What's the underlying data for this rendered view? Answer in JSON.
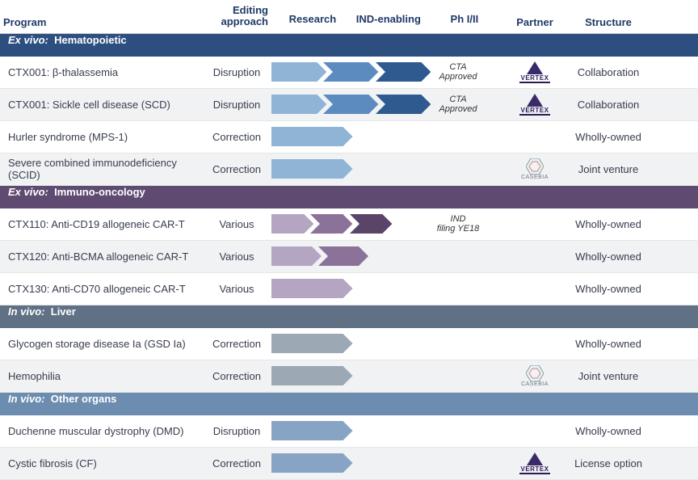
{
  "colors": {
    "text_header": "#1f3a68",
    "section_hema": "#2d4f80",
    "section_immuno": "#5f4b72",
    "section_liver": "#607185",
    "section_other": "#6d8db0",
    "chev_blue_light": "#8fb4d6",
    "chev_blue_med": "#5c8cbf",
    "chev_blue_dark": "#2e5a8f",
    "chev_purple_light": "#b4a6c2",
    "chev_purple_med": "#8b7299",
    "chev_purple_dark": "#5a4468",
    "chev_grey": "#9da8b5",
    "chev_steel": "#88a4c4"
  },
  "headers": {
    "program": "Program",
    "editing_line1": "Editing",
    "editing_line2": "approach",
    "research": "Research",
    "ind": "IND-enabling",
    "ph": "Ph I/II",
    "partner": "Partner",
    "structure": "Structure"
  },
  "sections": [
    {
      "prefix": "Ex vivo:",
      "title": "Hematopoietic",
      "bg": "section_hema",
      "rows": [
        {
          "program": "CTX001: β-thalassemia",
          "editing": "Disruption",
          "chevrons": [
            "chev_blue_light",
            "chev_blue_med",
            "chev_blue_dark"
          ],
          "chev_span": 66.6,
          "status": "CTA Approved",
          "partner": "vertex",
          "structure": "Collaboration",
          "alt": false
        },
        {
          "program": "CTX001: Sickle cell disease (SCD)",
          "editing": "Disruption",
          "chevrons": [
            "chev_blue_light",
            "chev_blue_med",
            "chev_blue_dark"
          ],
          "chev_span": 66.6,
          "status": "CTA Approved",
          "partner": "vertex",
          "structure": "Collaboration",
          "alt": true
        },
        {
          "program": "Hurler syndrome (MPS-1)",
          "editing": "Correction",
          "chevrons": [
            "chev_blue_light"
          ],
          "chev_span": 33.3,
          "status": "",
          "partner": "",
          "structure": "Wholly-owned",
          "alt": false
        },
        {
          "program": "Severe combined immunodeficiency (SCID)",
          "editing": "Correction",
          "chevrons": [
            "chev_blue_light"
          ],
          "chev_span": 33.3,
          "status": "",
          "partner": "casebia",
          "structure": "Joint venture",
          "alt": true
        }
      ]
    },
    {
      "prefix": "Ex vivo:",
      "title": "Immuno-oncology",
      "bg": "section_immuno",
      "rows": [
        {
          "program": "CTX110: Anti-CD19 allogeneic CAR-T",
          "editing": "Various",
          "chevrons": [
            "chev_purple_light",
            "chev_purple_med",
            "chev_purple_dark"
          ],
          "chev_span": 50,
          "status": "IND filing YE18",
          "partner": "",
          "structure": "Wholly-owned",
          "alt": false
        },
        {
          "program": "CTX120: Anti-BCMA allogeneic CAR-T",
          "editing": "Various",
          "chevrons": [
            "chev_purple_light",
            "chev_purple_med"
          ],
          "chev_span": 40,
          "status": "",
          "partner": "",
          "structure": "Wholly-owned",
          "alt": true
        },
        {
          "program": "CTX130: Anti-CD70 allogeneic CAR-T",
          "editing": "Various",
          "chevrons": [
            "chev_purple_light"
          ],
          "chev_span": 33.3,
          "status": "",
          "partner": "",
          "structure": "Wholly-owned",
          "alt": false
        }
      ]
    },
    {
      "prefix": "In vivo:",
      "title": "Liver",
      "bg": "section_liver",
      "rows": [
        {
          "program": "Glycogen storage disease Ia (GSD Ia)",
          "editing": "Correction",
          "chevrons": [
            "chev_grey"
          ],
          "chev_span": 33.3,
          "status": "",
          "partner": "",
          "structure": "Wholly-owned",
          "alt": false
        },
        {
          "program": "Hemophilia",
          "editing": "Correction",
          "chevrons": [
            "chev_grey"
          ],
          "chev_span": 33.3,
          "status": "",
          "partner": "casebia",
          "structure": "Joint venture",
          "alt": true
        }
      ]
    },
    {
      "prefix": "In vivo:",
      "title": "Other organs",
      "bg": "section_other",
      "rows": [
        {
          "program": "Duchenne muscular dystrophy (DMD)",
          "editing": "Disruption",
          "chevrons": [
            "chev_steel"
          ],
          "chev_span": 33.3,
          "status": "",
          "partner": "",
          "structure": "Wholly-owned",
          "alt": false
        },
        {
          "program": "Cystic fibrosis (CF)",
          "editing": "Correction",
          "chevrons": [
            "chev_steel"
          ],
          "chev_span": 33.3,
          "status": "",
          "partner": "vertex",
          "structure": "License option",
          "alt": true
        }
      ]
    }
  ]
}
